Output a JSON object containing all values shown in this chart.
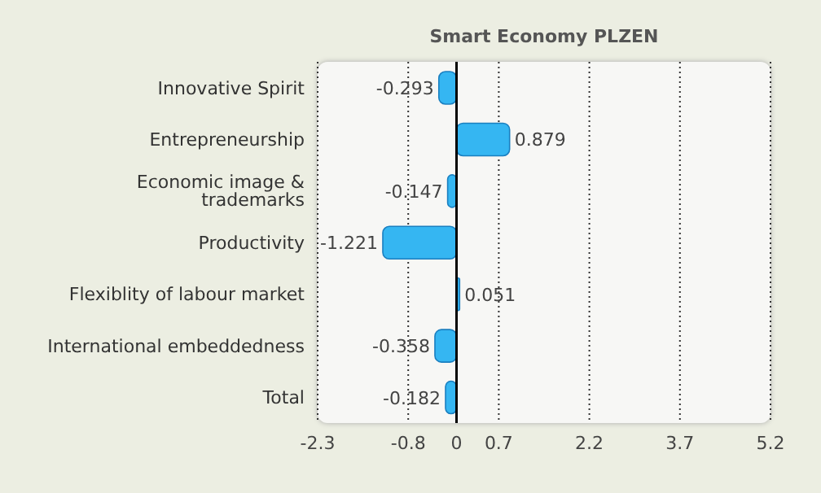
{
  "chart_data": {
    "type": "bar",
    "orientation": "horizontal",
    "title": "Smart Economy PLZEN",
    "categories": [
      "Innovative Spirit",
      "Entrepreneurship",
      "Economic image & trademarks",
      "Productivity",
      "Flexiblity of labour market",
      "International embeddedness",
      "Total"
    ],
    "values": [
      -0.293,
      0.879,
      -0.147,
      -1.221,
      0.051,
      -0.358,
      -0.182
    ],
    "color": "#35b6f2",
    "xlim": [
      -2.3,
      5.2
    ],
    "xticks": [
      -2.3,
      -0.8,
      0,
      0.7,
      2.2,
      3.7,
      5.2
    ],
    "grid": "x",
    "data_labels": true,
    "ref_lines": [
      {
        "axis": "x",
        "value": 0,
        "color": "#000000"
      }
    ],
    "legend": false
  }
}
